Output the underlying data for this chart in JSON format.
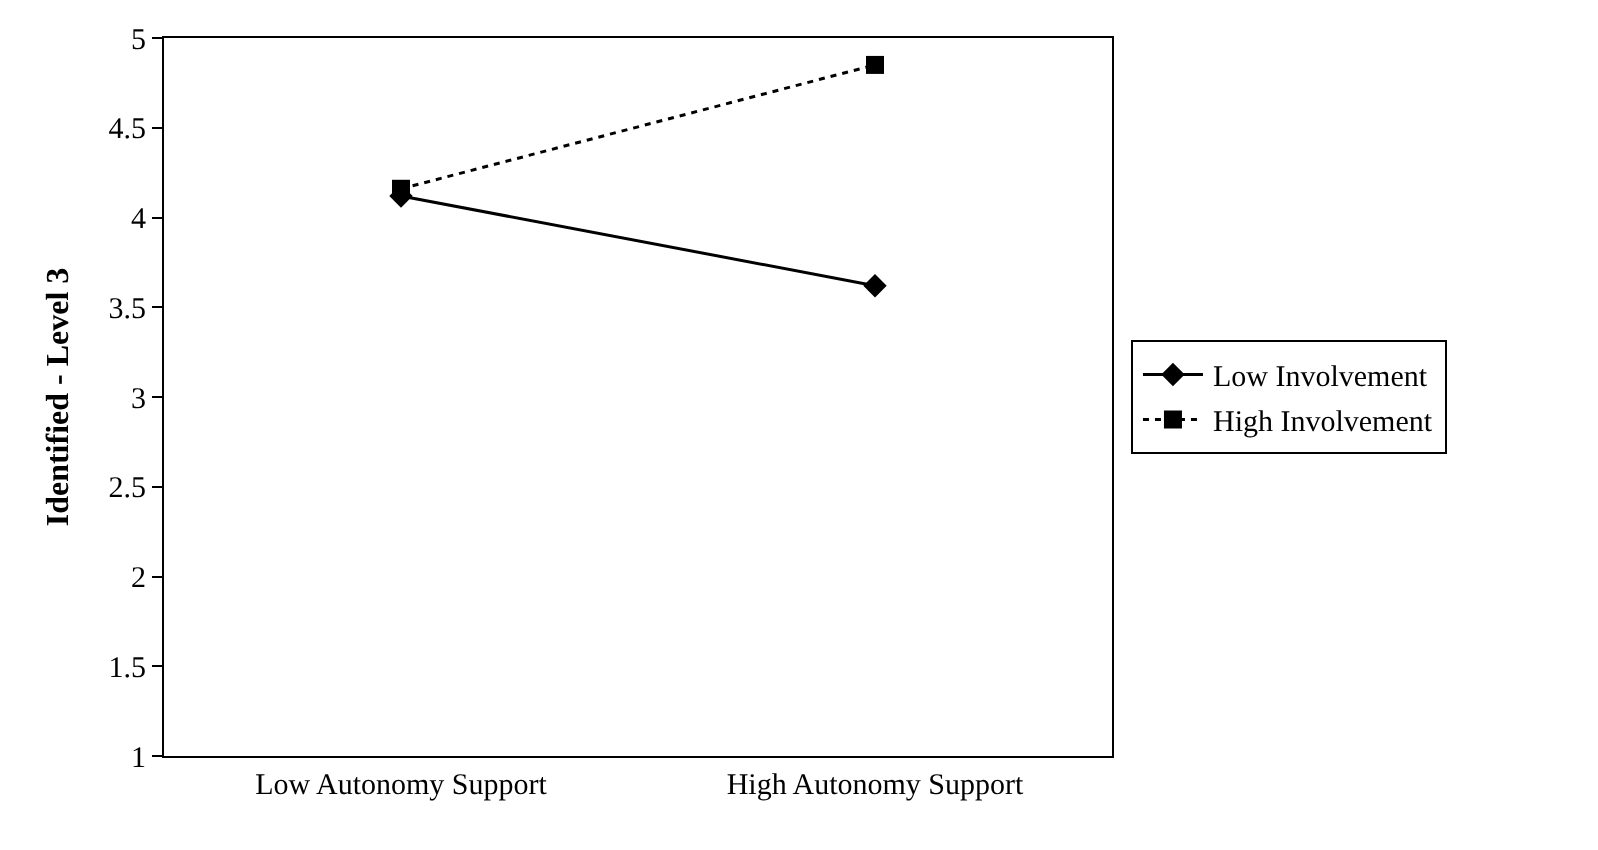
{
  "chart_data": {
    "type": "line",
    "ylabel": "Identified - Level 3",
    "categories": [
      "Low Autonomy Support",
      "High Autonomy Support"
    ],
    "series": [
      {
        "name": "Low Involvement",
        "color": "#000000",
        "values": [
          4.12,
          3.62
        ],
        "marker": "diamond",
        "line_style": "solid"
      },
      {
        "name": "High Involvement",
        "color": "#000000",
        "values": [
          4.16,
          4.85
        ],
        "marker": "square",
        "line_style": "dotted"
      }
    ],
    "ylim": [
      1,
      5
    ],
    "yticks": [
      1,
      1.5,
      2,
      2.5,
      3,
      3.5,
      4,
      4.5,
      5
    ],
    "legend": "right"
  }
}
